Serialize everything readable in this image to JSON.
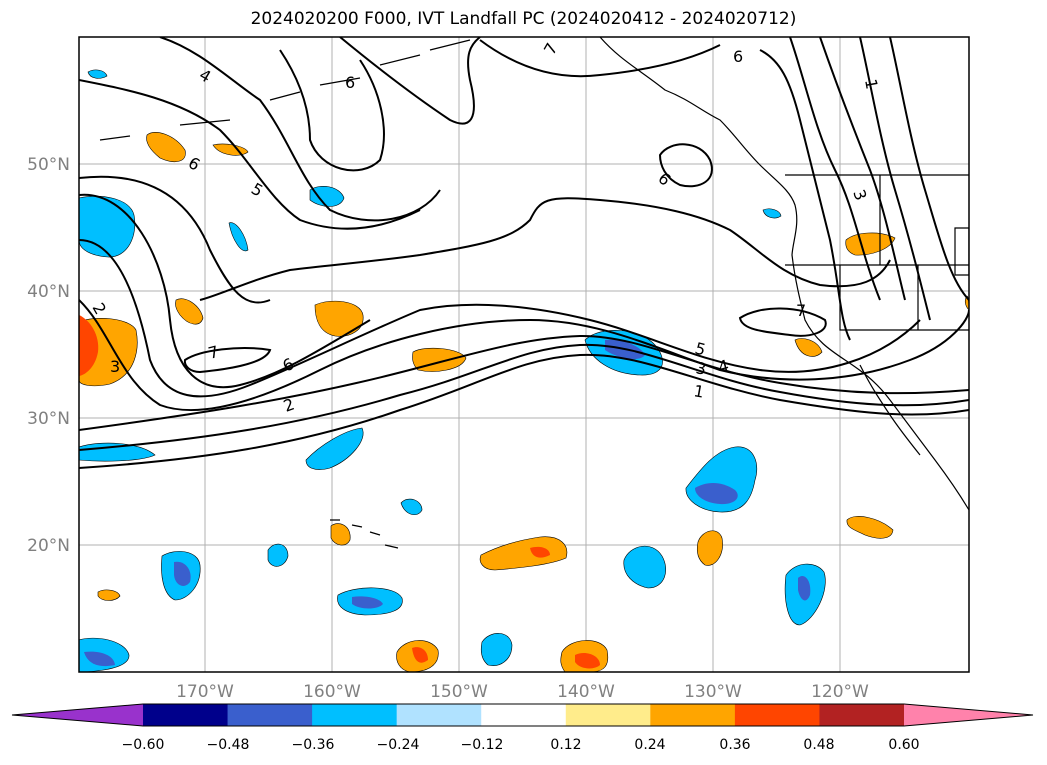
{
  "title": "2024020200 F000, IVT Landfall PC (2024020412 - 2024020712)",
  "lat_labels": [
    "50°N",
    "40°N",
    "30°N",
    "20°N"
  ],
  "lon_labels": [
    "170°W",
    "160°W",
    "150°W",
    "140°W",
    "130°W",
    "120°W"
  ],
  "colorbar": {
    "ticks": [
      "−0.60",
      "−0.48",
      "−0.36",
      "−0.24",
      "−0.12",
      "0.12",
      "0.24",
      "0.36",
      "0.48",
      "0.60"
    ],
    "colors": [
      "#9932cc",
      "#00008b",
      "#3a5fcd",
      "#00bfff",
      "#b0e2ff",
      "#ffffff",
      "#ffec8b",
      "#ffa500",
      "#ff4500",
      "#b22222",
      "#ff82ab"
    ]
  },
  "contour_labels": [
    "7",
    "6",
    "4",
    "5",
    "6",
    "6",
    "1",
    "3",
    "2",
    "3",
    "7",
    "6",
    "2",
    "5",
    "4",
    "3",
    "1",
    "7",
    "6"
  ]
}
